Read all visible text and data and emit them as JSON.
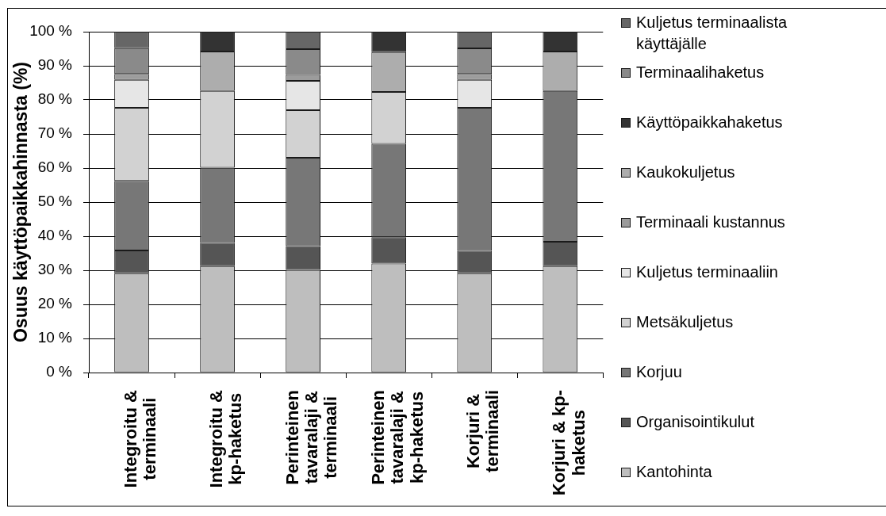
{
  "chart_data": {
    "type": "bar",
    "categories": [
      "Integroitu & terminaali",
      "Integroitu & kp-haketus",
      "Perinteinen tavaralaji & terminaali",
      "Perinteinen tavaralaji & kp-haketus",
      "Korjuri & terminaali",
      "Korjuri & kp-haketus"
    ],
    "series": [
      {
        "name": "Kantohinta",
        "color": "#bebebe",
        "values": [
          29.1,
          31.2,
          30.1,
          32.0,
          29.1,
          31.2
        ]
      },
      {
        "name": "Organisointikulut",
        "color": "#555555",
        "values": [
          6.7,
          6.8,
          7.0,
          7.7,
          6.6,
          7.2
        ]
      },
      {
        "name": "Korjuu",
        "color": "#777777",
        "values": [
          20.4,
          22.1,
          25.9,
          27.4,
          42.0,
          44.2
        ]
      },
      {
        "name": "Metsäkuljetus",
        "color": "#d2d2d2",
        "values": [
          21.5,
          22.5,
          14.0,
          15.2,
          null,
          null
        ]
      },
      {
        "name": "Kuljetus terminaaliin",
        "color": "#e6e6e6",
        "values": [
          8.2,
          null,
          8.6,
          null,
          8.2,
          null
        ]
      },
      {
        "name": "Terminaali kustannus",
        "color": "#9c9c9c",
        "values": [
          1.7,
          null,
          1.7,
          null,
          1.7,
          null
        ]
      },
      {
        "name": "Kaukokuljetus",
        "color": "#adadad",
        "values": [
          null,
          11.6,
          null,
          11.7,
          null,
          11.6
        ]
      },
      {
        "name": "Käyttöpaikkahaketus",
        "color": "#333333",
        "values": [
          null,
          5.8,
          null,
          6.0,
          null,
          5.8
        ]
      },
      {
        "name": "Terminaalihaketus",
        "color": "#8a8a8a",
        "values": [
          7.6,
          null,
          7.6,
          null,
          7.5,
          null
        ]
      },
      {
        "name": "Kuljetus terminaalista käyttäjälle",
        "color": "#666666",
        "values": [
          4.8,
          null,
          5.1,
          null,
          4.9,
          null
        ]
      }
    ],
    "ylabel": "Osuus käyttöpaikkahinnasta (%)",
    "ylim": [
      0,
      100
    ],
    "yticks": [
      {
        "value": 0,
        "label": "0 %"
      },
      {
        "value": 10,
        "label": "10 %"
      },
      {
        "value": 20,
        "label": "20 %"
      },
      {
        "value": 30,
        "label": "30 %"
      },
      {
        "value": 40,
        "label": "40 %"
      },
      {
        "value": 50,
        "label": "50 %"
      },
      {
        "value": 60,
        "label": "60 %"
      },
      {
        "value": 70,
        "label": "70 %"
      },
      {
        "value": 80,
        "label": "80 %"
      },
      {
        "value": 90,
        "label": "90 %"
      },
      {
        "value": 100,
        "label": "100 %"
      }
    ],
    "stacked": true,
    "grid": "y",
    "legend": "right"
  }
}
